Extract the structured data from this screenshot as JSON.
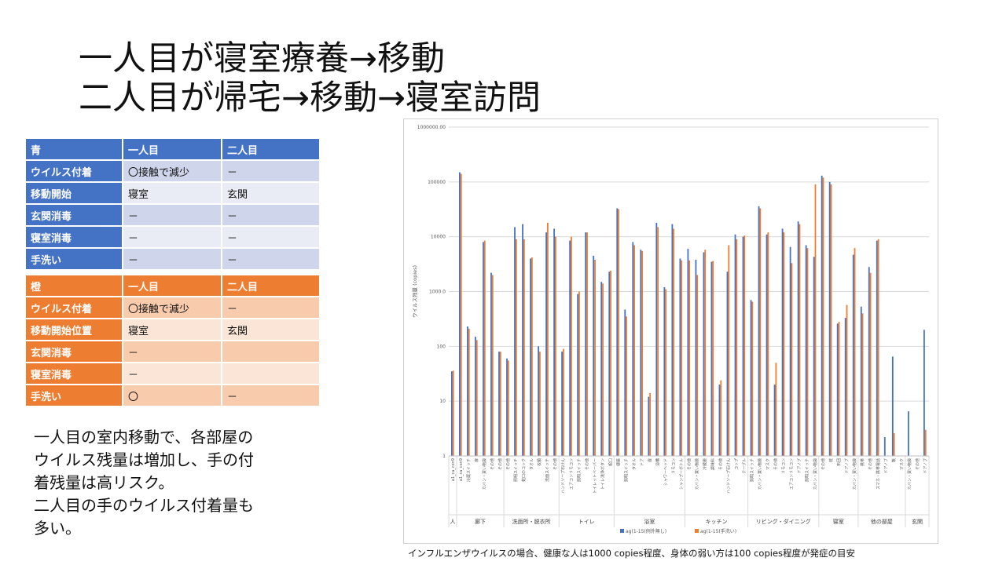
{
  "title": {
    "line1": "一人目が寝室療養→移動",
    "line2": "二人目が帰宅→移動→寝室訪問"
  },
  "table_blue": {
    "header": [
      "青",
      "一人目",
      "二人目"
    ],
    "rows": [
      [
        "ウイルス付着",
        "〇接触で減少",
        "－"
      ],
      [
        "移動開始",
        "寝室",
        "玄関"
      ],
      [
        "玄関消毒",
        "－",
        "－"
      ],
      [
        "寝室消毒",
        "－",
        "－"
      ],
      [
        "手洗い",
        "－",
        "－"
      ]
    ]
  },
  "table_orange": {
    "header": [
      "橙",
      "一人目",
      "二人目"
    ],
    "rows": [
      [
        "ウイルス付着",
        "〇接触で減少",
        "－"
      ],
      [
        "移動開始位置",
        "寝室",
        "玄関"
      ],
      [
        "玄関消毒",
        "－",
        ""
      ],
      [
        "寝室消毒",
        "－",
        ""
      ],
      [
        "手洗い",
        "〇",
        "－"
      ]
    ]
  },
  "note": {
    "lines": [
      "一人目の室内移動で、各部屋の",
      "ウイルス残量は増加し、手の付",
      "着残量は高リスク。",
      "二人目の手のウイルス付着量も",
      "多い。"
    ]
  },
  "footnote": "インフルエンザウイルスの場合、健康な人は1000 copies程度、身体の弱い方は100 copies程度が発症の目安",
  "chart_data": {
    "type": "bar",
    "ylabel": "ウイルス残量 (copies)",
    "yscale": "log",
    "ylim": [
      1,
      1000000
    ],
    "yticks": [
      "1",
      "10",
      "100",
      "1000.0",
      "10000",
      "100000",
      "1000000.00"
    ],
    "grid": true,
    "legend_position": "bottom",
    "colors": {
      "blue": "#4472c4",
      "orange": "#ed7d31"
    },
    "series": [
      {
        "name": "ag(1-15(例外無し)",
        "values": [
          35,
          150000,
          230,
          150,
          8000,
          2200,
          80,
          60,
          15000,
          17000,
          4000,
          100,
          12000,
          14000,
          80,
          8500,
          900,
          12000,
          4500,
          1500,
          2300,
          33000,
          470,
          8000,
          5800,
          12,
          18000,
          1200,
          17000,
          4000,
          6000,
          3800,
          5200,
          3500,
          20,
          2300,
          11000,
          10000,
          700,
          36000,
          11000,
          20,
          14000,
          6500,
          19000,
          7000,
          4300,
          130000,
          100000,
          260,
          330,
          4700,
          530,
          2800,
          8500,
          2.2,
          65,
          1,
          6.5,
          1,
          200
        ]
      },
      {
        "name": "ag(1-15(手洗い)",
        "values": [
          36,
          140000,
          210,
          130,
          8500,
          2000,
          80,
          55,
          9000,
          9000,
          4200,
          80,
          18000,
          10000,
          90,
          10000,
          1000,
          12000,
          3800,
          1400,
          2400,
          32000,
          350,
          7000,
          5500,
          14,
          15000,
          1100,
          14000,
          3700,
          3700,
          2000,
          5800,
          3600,
          24,
          7000,
          9000,
          10500,
          650,
          33000,
          12000,
          50,
          12000,
          3300,
          17000,
          6200,
          90000,
          120000,
          90000,
          280,
          570,
          6200,
          400,
          2200,
          9000,
          1,
          2.6,
          1,
          1,
          1,
          3
        ]
      }
    ],
    "categories": [
      "a1_ca_con9",
      "a1_ca_con9",
      "冷蔵スイッチ",
      "扉",
      "カバン・買い物袋",
      "その他",
      "その他",
      "その他",
      "照明スイッチ",
      "蛇口のコック",
      "タオル",
      "衣類",
      "洗面スイッチ",
      "その他",
      "ハンドソープ石けん",
      "エアコンリモコン",
      "照明スイッチ",
      "その他",
      "トイレットペーパー",
      "トイレ洗浄ボタン",
      "蛇口",
      "便座",
      "照明スイッチ",
      "タオル",
      "ドア",
      "扉",
      "浴槽",
      "シャワーヘッド",
      "リモコン",
      "シャンプーボトル",
      "その他",
      "カバン・買い物袋",
      "冷蔵庫",
      "調味料",
      "その他",
      "ハンドソープ石けん",
      "コップ",
      "テーブル",
      "照明スイッチ",
      "カバン・買い物袋",
      "マスク",
      "その他",
      "リモコン",
      "エアコンリモコン",
      "ドアノブ",
      "照明スイッチ",
      "カバン・買い物袋",
      "その他",
      "枕",
      "布団",
      "ドアノブ",
      "カバン・買い物袋",
      "携帯",
      "その他",
      "スマホ・携帯電話",
      "ドアノブ",
      "靴",
      "マスク",
      "カバン・買い物袋",
      "その他",
      "ドアノブ"
    ],
    "groups": [
      {
        "label": "人",
        "count": 1
      },
      {
        "label": "廊下",
        "count": 6
      },
      {
        "label": "洗面所・脱衣所",
        "count": 7
      },
      {
        "label": "トイレ",
        "count": 7
      },
      {
        "label": "浴室",
        "count": 9
      },
      {
        "label": "キッチン",
        "count": 8
      },
      {
        "label": "リビング・ダイニング",
        "count": 9
      },
      {
        "label": "寝室",
        "count": 5
      },
      {
        "label": "他の部屋",
        "count": 6
      },
      {
        "label": "玄関",
        "count": 3
      }
    ]
  }
}
